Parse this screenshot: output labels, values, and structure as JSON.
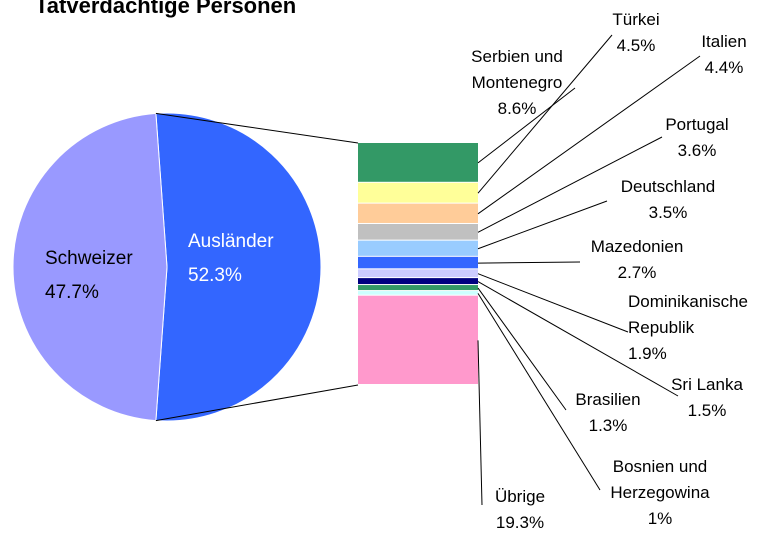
{
  "chart_data": {
    "type": "pie-of-bar",
    "title": "Tatverdächtige Personen",
    "pie": {
      "categories": [
        "Schweizer",
        "Ausländer"
      ],
      "values": [
        47.7,
        52.3
      ],
      "value_labels": [
        "47.7%",
        "52.3%"
      ],
      "colors": [
        "#9999ff",
        "#3366ff"
      ]
    },
    "breakdown": {
      "categories": [
        "Serbien und\nMontenegro",
        "Türkei",
        "Italien",
        "Portugal",
        "Deutschland",
        "Mazedonien",
        "Dominikanische\nRepublik",
        "Sri Lanka",
        "Brasilien",
        "Bosnien und\nHerzegowina",
        "Übrige"
      ],
      "values": [
        8.6,
        4.5,
        4.4,
        3.6,
        3.5,
        2.7,
        1.9,
        1.5,
        1.3,
        1,
        19.3
      ],
      "value_labels": [
        "8.6%",
        "4.5%",
        "4.4%",
        "3.6%",
        "3.5%",
        "2.7%",
        "1.9%",
        "1.5%",
        "1.3%",
        "1%",
        "19.3%"
      ],
      "colors": [
        "#339966",
        "#ffff99",
        "#ffcc99",
        "#c0c0c0",
        "#99ccff",
        "#3366ff",
        "#ccccff",
        "#000080",
        "#339966",
        "#ccffff",
        "#ff99cc"
      ]
    }
  }
}
